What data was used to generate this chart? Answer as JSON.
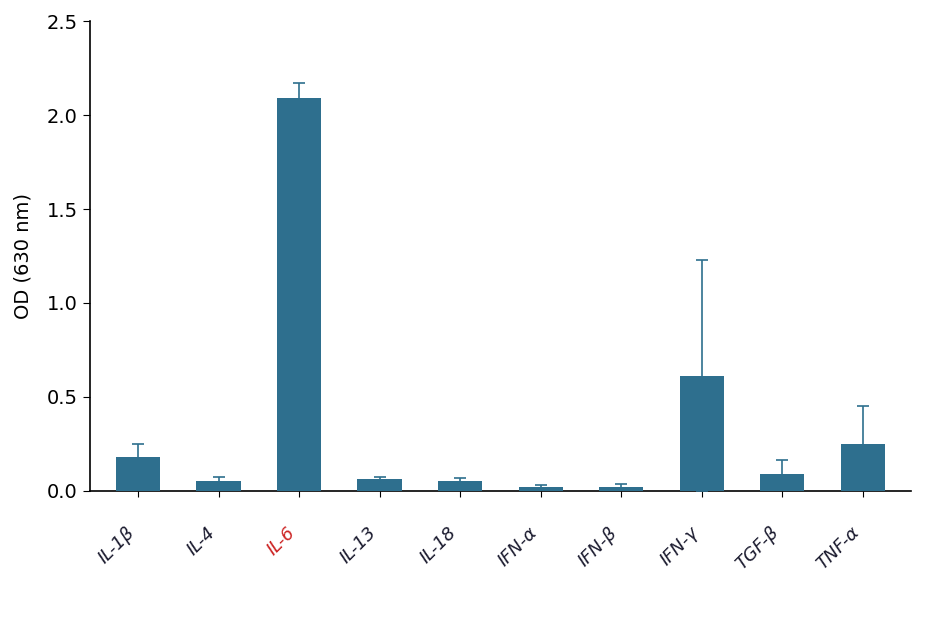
{
  "categories": [
    "IL-1β",
    "IL-4",
    "IL-6",
    "IL-13",
    "IL-18",
    "IFN-α",
    "IFN-β",
    "IFN-γ",
    "TGF-β",
    "TNF-α"
  ],
  "values": [
    0.18,
    0.05,
    2.09,
    0.06,
    0.05,
    0.02,
    0.02,
    0.61,
    0.09,
    0.25
  ],
  "errors": [
    0.07,
    0.02,
    0.08,
    0.015,
    0.015,
    0.01,
    0.015,
    0.62,
    0.075,
    0.2
  ],
  "bar_color": "#2e6f8e",
  "il6_label_color": "#cc2222",
  "default_label_color": "#1a1a2e",
  "ylabel": "OD (630 nm)",
  "ylim": [
    0,
    2.5
  ],
  "yticks": [
    0.0,
    0.5,
    1.0,
    1.5,
    2.0,
    2.5
  ],
  "background_color": "#ffffff",
  "bar_width": 0.55
}
